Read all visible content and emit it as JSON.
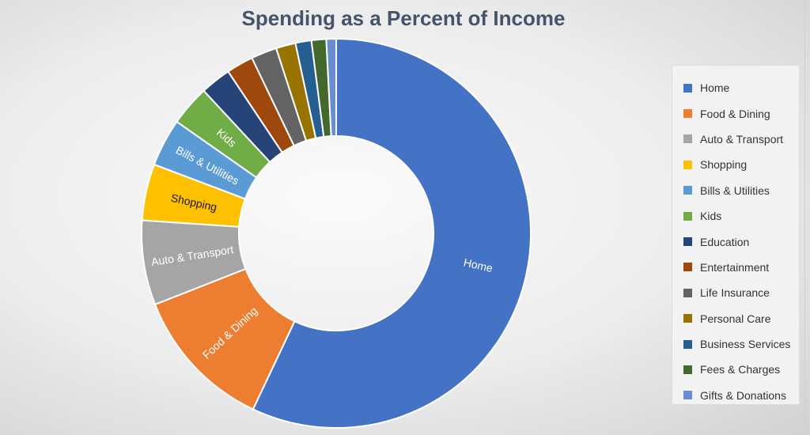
{
  "chart_data": {
    "type": "pie",
    "style": "donut",
    "title": "Spending as a Percent of Income",
    "legend_position": "right",
    "slices": [
      {
        "label": "Home",
        "value": 56.0,
        "color": "#4472c4",
        "label_on_chart": true,
        "label_color": "#ffffff"
      },
      {
        "label": "Food & Dining",
        "value": 11.8,
        "color": "#ed7d31",
        "label_on_chart": true,
        "label_color": "#ffffff"
      },
      {
        "label": "Auto & Transport",
        "value": 6.9,
        "color": "#a5a5a5",
        "label_on_chart": true,
        "label_color": "#ffffff"
      },
      {
        "label": "Shopping",
        "value": 4.6,
        "color": "#ffc000",
        "label_on_chart": true,
        "label_color": "#1a1a1a"
      },
      {
        "label": "Bills & Utilities",
        "value": 3.9,
        "color": "#5b9bd5",
        "label_on_chart": true,
        "label_color": "#ffffff"
      },
      {
        "label": "Kids",
        "value": 3.3,
        "color": "#70ad47",
        "label_on_chart": true,
        "label_color": "#ffffff"
      },
      {
        "label": "Education",
        "value": 2.5,
        "color": "#264478",
        "label_on_chart": false
      },
      {
        "label": "Entertainment",
        "value": 2.2,
        "color": "#9e480e",
        "label_on_chart": false
      },
      {
        "label": "Life Insurance",
        "value": 2.1,
        "color": "#636363",
        "label_on_chart": false
      },
      {
        "label": "Personal Care",
        "value": 1.6,
        "color": "#997300",
        "label_on_chart": false
      },
      {
        "label": "Business Services",
        "value": 1.3,
        "color": "#255e91",
        "label_on_chart": false
      },
      {
        "label": "Fees & Charges",
        "value": 1.2,
        "color": "#43682b",
        "label_on_chart": false
      },
      {
        "label": "Gifts & Donations",
        "value": 0.8,
        "color": "#698ed0",
        "label_on_chart": false
      }
    ]
  }
}
